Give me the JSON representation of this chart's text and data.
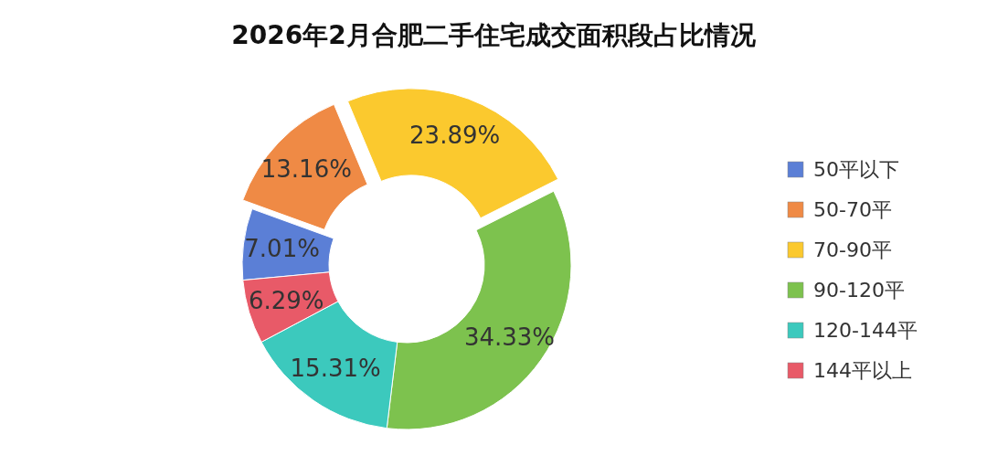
{
  "chart_data": {
    "type": "donut",
    "title": "2026年2月合肥二手住宅成交面积段占比情况",
    "categories": [
      "50平以下",
      "50-70平",
      "70-90平",
      "90-120平",
      "120-144平",
      "144平以上"
    ],
    "values": [
      7.01,
      13.16,
      23.89,
      34.33,
      15.31,
      6.29
    ],
    "colors": [
      "#5b7fd6",
      "#ef8a45",
      "#fbc92e",
      "#7dc24e",
      "#3cc9bd",
      "#e85a68"
    ],
    "value_labels": [
      "7.01%",
      "13.16%",
      "23.89%",
      "34.33%",
      "15.31%",
      "6.29%"
    ],
    "legend": "right"
  }
}
